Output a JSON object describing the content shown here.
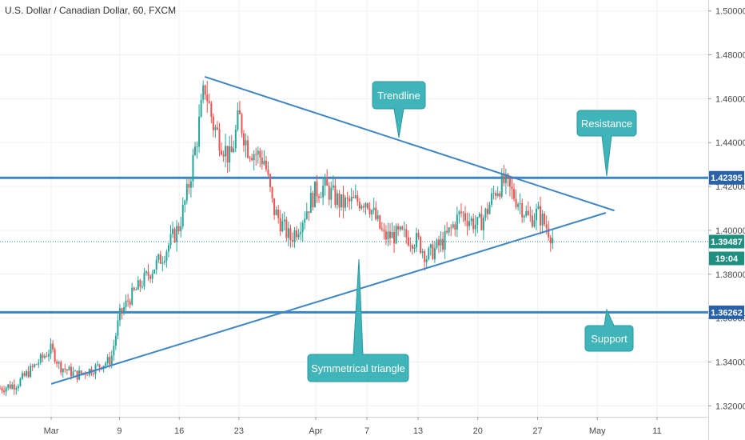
{
  "header": {
    "title": "U.S. Dollar / Canadian Dollar, 60, FXCM"
  },
  "colors": {
    "up": "#26a69a",
    "down": "#ef5350",
    "line": "#3d85c6",
    "callout": "#3fb4b9",
    "callout_border": "#2a9aa0",
    "grid": "#eef1f4",
    "axis_text": "#4a4a4a",
    "tag_blue": "#2962a8",
    "tag_green": "#1f8f80"
  },
  "price_tags": {
    "resistance": "1.42395",
    "current": "1.39487",
    "countdown": "19:04",
    "support": "1.36262"
  },
  "annotations": {
    "trendline": "Trendline",
    "resistance": "Resistance",
    "support": "Support",
    "triangle": "Symmetrical triangle"
  },
  "chart_data": {
    "type": "line",
    "title": "U.S. Dollar / Canadian Dollar, 60, FXCM",
    "symbol": "USDCAD",
    "interval": "60",
    "source": "FXCM",
    "y_axis_position": "right",
    "ylim": [
      1.315,
      1.505
    ],
    "y_ticks": [
      "1.50000",
      "1.48000",
      "1.46000",
      "1.44000",
      "1.42000",
      "1.40000",
      "1.38000",
      "1.36000",
      "1.34000",
      "1.32000"
    ],
    "y_tick_values": [
      1.5,
      1.48,
      1.46,
      1.44,
      1.42,
      1.4,
      1.38,
      1.36,
      1.34,
      1.32
    ],
    "x_ticks": [
      "Mar",
      "9",
      "16",
      "23",
      "Apr",
      "7",
      "13",
      "20",
      "27",
      "May",
      "11"
    ],
    "x_tick_dates": [
      "2020-03-01",
      "2020-03-09",
      "2020-03-16",
      "2020-03-23",
      "2020-04-01",
      "2020-04-07",
      "2020-04-13",
      "2020-04-20",
      "2020-04-27",
      "2020-05-04",
      "2020-05-11"
    ],
    "xlim": [
      "2020-02-24",
      "2020-05-17"
    ],
    "grid": true,
    "price_path": [
      [
        "2020-02-24",
        1.328
      ],
      [
        "2020-02-26",
        1.33
      ],
      [
        "2020-02-28",
        1.338
      ],
      [
        "2020-03-01",
        1.346
      ],
      [
        "2020-03-02",
        1.338
      ],
      [
        "2020-03-04",
        1.334
      ],
      [
        "2020-03-06",
        1.337
      ],
      [
        "2020-03-08",
        1.341
      ],
      [
        "2020-03-09",
        1.361
      ],
      [
        "2020-03-10",
        1.368
      ],
      [
        "2020-03-12",
        1.378
      ],
      [
        "2020-03-14",
        1.388
      ],
      [
        "2020-03-16",
        1.402
      ],
      [
        "2020-03-17",
        1.418
      ],
      [
        "2020-03-18",
        1.44
      ],
      [
        "2020-03-19",
        1.466
      ],
      [
        "2020-03-20",
        1.448
      ],
      [
        "2020-03-22",
        1.432
      ],
      [
        "2020-03-23",
        1.452
      ],
      [
        "2020-03-24",
        1.438
      ],
      [
        "2020-03-26",
        1.432
      ],
      [
        "2020-03-27",
        1.41
      ],
      [
        "2020-03-29",
        1.396
      ],
      [
        "2020-03-30",
        1.402
      ],
      [
        "2020-04-01",
        1.418
      ],
      [
        "2020-04-02",
        1.42
      ],
      [
        "2020-04-04",
        1.412
      ],
      [
        "2020-04-07",
        1.414
      ],
      [
        "2020-04-09",
        1.397
      ],
      [
        "2020-04-11",
        1.398
      ],
      [
        "2020-04-13",
        1.395
      ],
      [
        "2020-04-14",
        1.388
      ],
      [
        "2020-04-16",
        1.395
      ],
      [
        "2020-04-18",
        1.408
      ],
      [
        "2020-04-20",
        1.402
      ],
      [
        "2020-04-21",
        1.408
      ],
      [
        "2020-04-22",
        1.418
      ],
      [
        "2020-04-23",
        1.422
      ],
      [
        "2020-04-25",
        1.412
      ],
      [
        "2020-04-26",
        1.405
      ],
      [
        "2020-04-27",
        1.408
      ],
      [
        "2020-04-28",
        1.402
      ],
      [
        "2020-04-29",
        1.395
      ]
    ],
    "drawings": {
      "resistance_level": 1.42395,
      "support_level": 1.36262,
      "upper_trendline": [
        [
          "2020-03-19",
          1.47
        ],
        [
          "2020-05-06",
          1.409
        ]
      ],
      "lower_trendline": [
        [
          "2020-03-01",
          1.33
        ],
        [
          "2020-05-05",
          1.408
        ]
      ],
      "current_price": 1.39487
    }
  }
}
